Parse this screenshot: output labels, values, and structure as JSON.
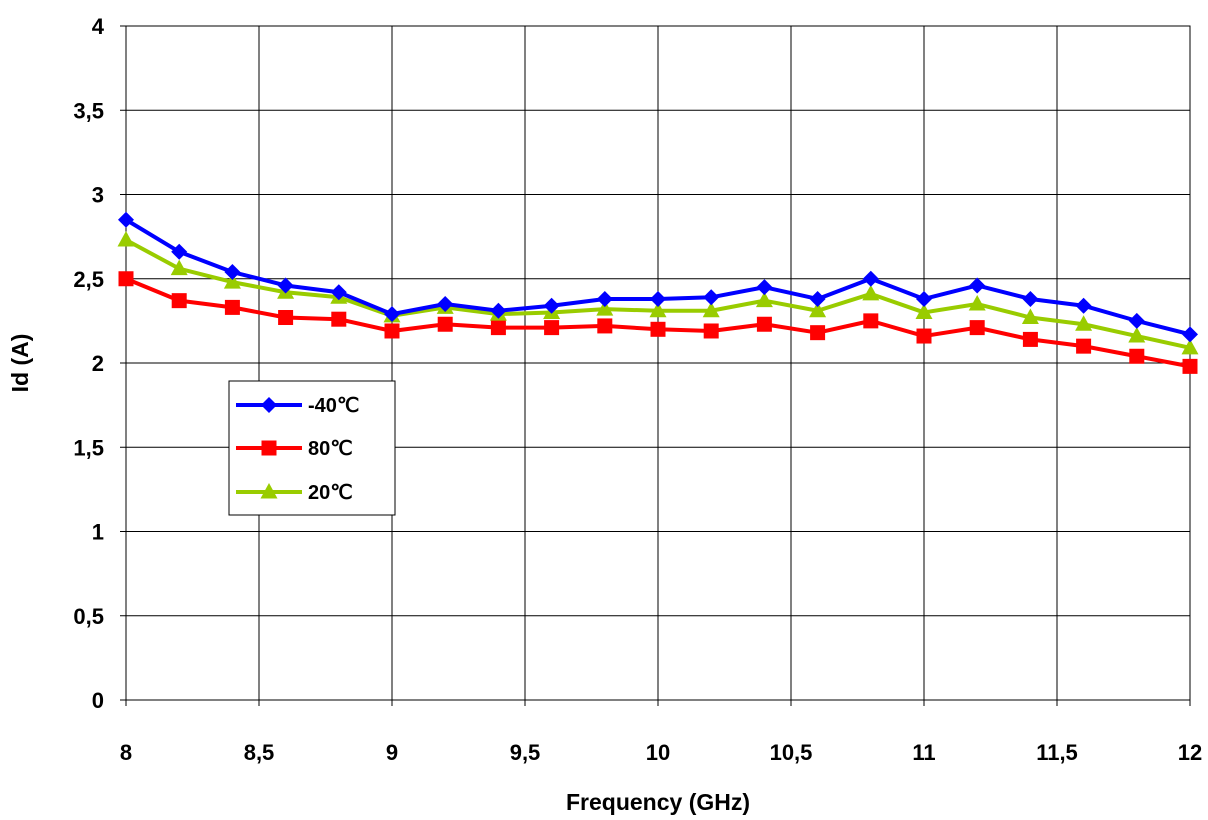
{
  "chart_data": {
    "type": "line",
    "title": "",
    "xlabel": "Frequency (GHz)",
    "ylabel": "Id (A)",
    "xlim": [
      8,
      12
    ],
    "ylim": [
      0,
      4
    ],
    "x_ticks": [
      "8",
      "8,5",
      "9",
      "9,5",
      "10",
      "10,5",
      "11",
      "11,5",
      "12"
    ],
    "y_ticks": [
      "0",
      "0,5",
      "1",
      "1,5",
      "2",
      "2,5",
      "3",
      "3,5",
      "4"
    ],
    "grid": true,
    "legend_position": "middle-left",
    "x": [
      8.0,
      8.2,
      8.4,
      8.6,
      8.8,
      9.0,
      9.2,
      9.4,
      9.6,
      9.8,
      10.0,
      10.2,
      10.4,
      10.6,
      10.8,
      11.0,
      11.2,
      11.4,
      11.6,
      11.8,
      12.0
    ],
    "series": [
      {
        "name": "-40℃",
        "color": "#0000ff",
        "marker": "diamond",
        "values": [
          2.85,
          2.66,
          2.54,
          2.46,
          2.42,
          2.29,
          2.35,
          2.31,
          2.34,
          2.38,
          2.38,
          2.39,
          2.45,
          2.38,
          2.5,
          2.38,
          2.46,
          2.38,
          2.34,
          2.25,
          2.17
        ]
      },
      {
        "name": "80℃",
        "color": "#ff0000",
        "marker": "square",
        "values": [
          2.5,
          2.37,
          2.33,
          2.27,
          2.26,
          2.19,
          2.23,
          2.21,
          2.21,
          2.22,
          2.2,
          2.19,
          2.23,
          2.18,
          2.25,
          2.16,
          2.21,
          2.14,
          2.1,
          2.04,
          1.98
        ]
      },
      {
        "name": "20℃",
        "color": "#99cc00",
        "marker": "triangle",
        "values": [
          2.73,
          2.56,
          2.48,
          2.42,
          2.39,
          2.28,
          2.33,
          2.29,
          2.3,
          2.32,
          2.31,
          2.31,
          2.37,
          2.31,
          2.41,
          2.3,
          2.35,
          2.27,
          2.23,
          2.16,
          2.09
        ]
      }
    ]
  }
}
